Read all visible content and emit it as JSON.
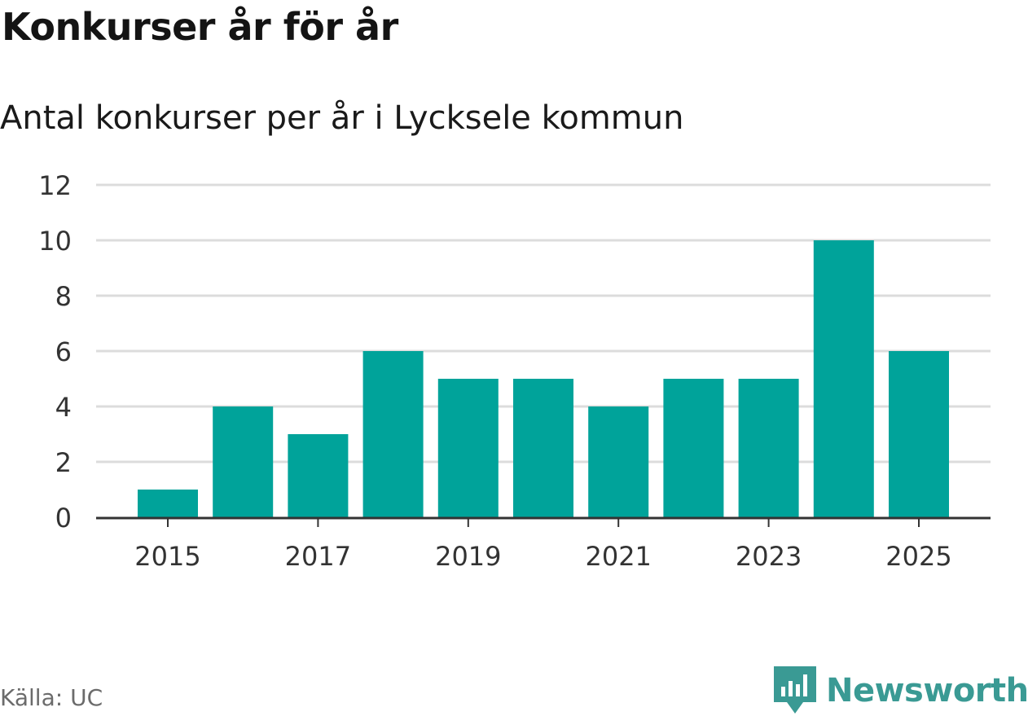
{
  "header": {
    "title": "Konkurser år för år",
    "subtitle": "Antal konkurser per år i Lycksele kommun"
  },
  "footer": {
    "source": "Källa: UC",
    "brand": "Newsworthy",
    "brand_icon": "newsworthy-chart-icon"
  },
  "colors": {
    "bar": "#00a39a",
    "grid": "#dcdcdc",
    "axis": "#333333",
    "brand": "#3a9a94"
  },
  "chart_data": {
    "type": "bar",
    "title": "Konkurser år för år",
    "subtitle": "Antal konkurser per år i Lycksele kommun",
    "xlabel": "",
    "ylabel": "",
    "categories": [
      "2015",
      "2016",
      "2017",
      "2018",
      "2019",
      "2020",
      "2021",
      "2022",
      "2023",
      "2024",
      "2025"
    ],
    "values": [
      1,
      4,
      3,
      6,
      5,
      5,
      4,
      5,
      5,
      10,
      6
    ],
    "ylim": [
      0,
      12
    ],
    "yticks": [
      0,
      2,
      4,
      6,
      8,
      10,
      12
    ],
    "xtick_labels": [
      "2015",
      "2017",
      "2019",
      "2021",
      "2023",
      "2025"
    ],
    "grid": true,
    "legend": "none"
  }
}
